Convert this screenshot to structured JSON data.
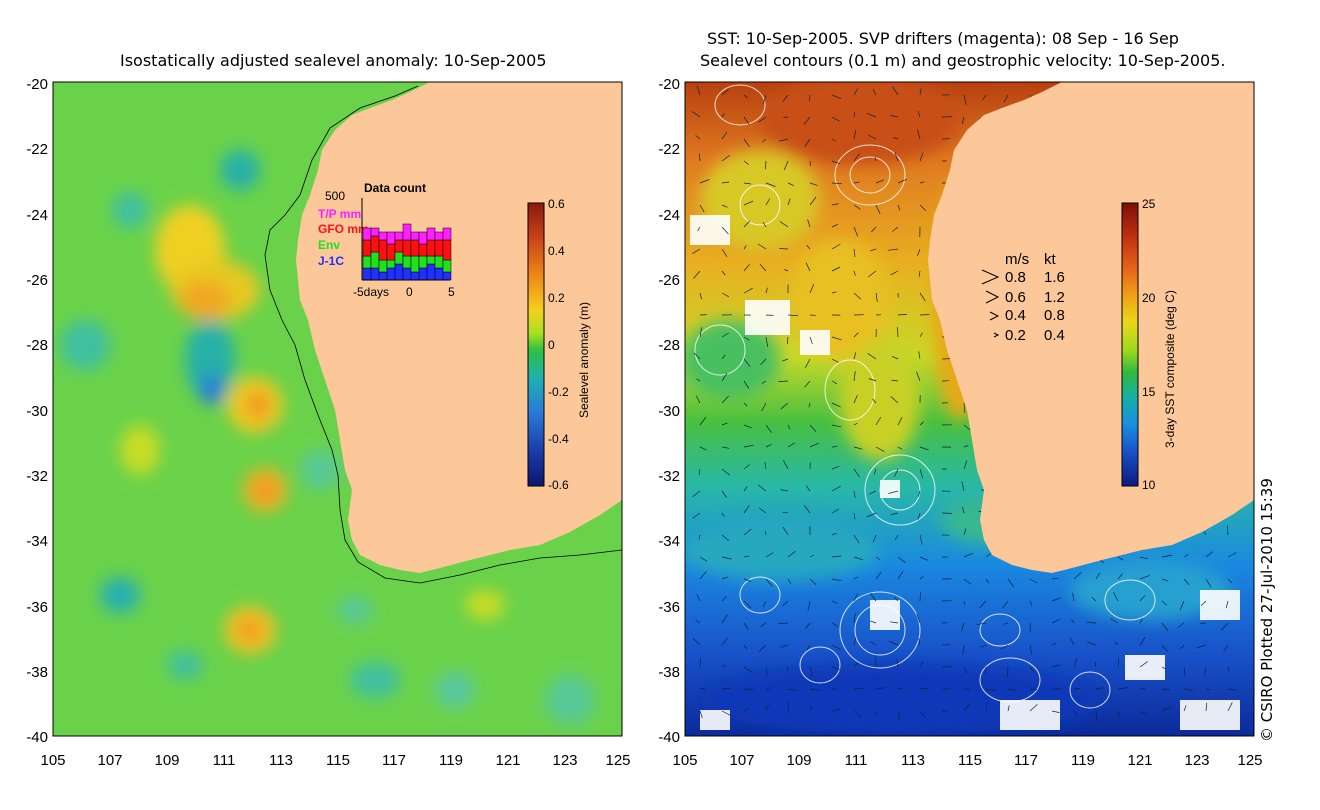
{
  "left_panel": {
    "title": "Isostatically adjusted sealevel anomaly: 10-Sep-2005",
    "y_ticks": [
      "-20",
      "-22",
      "-24",
      "-26",
      "-28",
      "-30",
      "-32",
      "-34",
      "-36",
      "-38",
      "-40"
    ],
    "x_ticks": [
      "105",
      "107",
      "109",
      "111",
      "113",
      "115",
      "117",
      "119",
      "121",
      "123",
      "125"
    ],
    "colorbar": {
      "label": "Sealevel anomaly (m)",
      "ticks": [
        "0.6",
        "0.4",
        "0.2",
        "0",
        "-0.2",
        "-0.4",
        "-0.6"
      ],
      "colors": [
        "#8b1a0a",
        "#c8401a",
        "#ef8a18",
        "#f5d020",
        "#a8e020",
        "#30c040",
        "#20b0b0",
        "#2a7ad8",
        "#1a3aa8",
        "#0a1870"
      ]
    },
    "data_count": {
      "title": "Data count",
      "max_label": "500",
      "legend": [
        {
          "label": "T/P mm",
          "color": "#ff20ff"
        },
        {
          "label": "GFO mm",
          "color": "#ff1010"
        },
        {
          "label": "Env",
          "color": "#20e020"
        },
        {
          "label": "J-1C",
          "color": "#2030ff"
        }
      ],
      "x_ticks": [
        "-5days",
        "0",
        "5"
      ]
    }
  },
  "right_panel": {
    "title_line1": "SST: 10-Sep-2005. SVP drifters (magenta): 08 Sep - 16 Sep",
    "title_line2": "Sealevel contours (0.1 m) and geostrophic velocity: 10-Sep-2005.",
    "y_ticks": [
      "-20",
      "-22",
      "-24",
      "-26",
      "-28",
      "-30",
      "-32",
      "-34",
      "-36",
      "-38",
      "-40"
    ],
    "x_ticks": [
      "105",
      "107",
      "109",
      "111",
      "113",
      "115",
      "117",
      "119",
      "121",
      "123",
      "125"
    ],
    "velocity_legend": {
      "header_ms": "m/s",
      "header_kt": "kt",
      "rows": [
        {
          "ms": "0.8",
          "kt": "1.6"
        },
        {
          "ms": "0.6",
          "kt": "1.2"
        },
        {
          "ms": "0.4",
          "kt": "0.8"
        },
        {
          "ms": "0.2",
          "kt": "0.4"
        }
      ]
    },
    "colorbar": {
      "label": "3-day SST composite (deg C)",
      "ticks": [
        "25",
        "20",
        "15",
        "10"
      ],
      "colors": [
        "#7a1008",
        "#c03010",
        "#e86818",
        "#f0a818",
        "#e8d818",
        "#a0d820",
        "#30b840",
        "#18b0a0",
        "#1890e0",
        "#1850c8",
        "#0c1a80"
      ]
    },
    "copyright": "© CSIRO Plotted 27-Jul-2010 15:39"
  },
  "colors": {
    "land": "#fcc899",
    "ocean_base": "#6ad24a",
    "sst_warm": "#e07a20",
    "sst_cool": "#1a6ad8"
  }
}
